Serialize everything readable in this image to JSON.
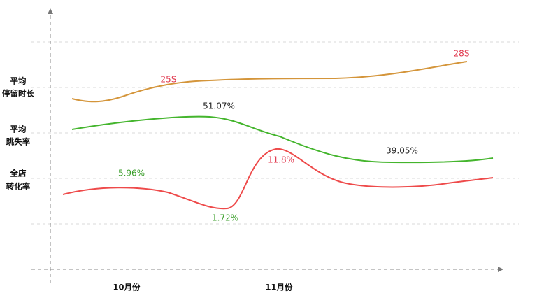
{
  "rows": [
    {
      "label_lines": [
        "平均",
        "停留时长"
      ],
      "annotations": [
        "25S",
        "28S"
      ]
    },
    {
      "label_lines": [
        "平均",
        "跳失率"
      ],
      "annotations": [
        "51.07%",
        "39.05%"
      ]
    },
    {
      "label_lines": [
        "全店",
        "转化率"
      ],
      "annotations": [
        "5.96%",
        "1.72%",
        "11.8%"
      ]
    }
  ],
  "x_labels": [
    "10月份",
    "11月份"
  ]
}
